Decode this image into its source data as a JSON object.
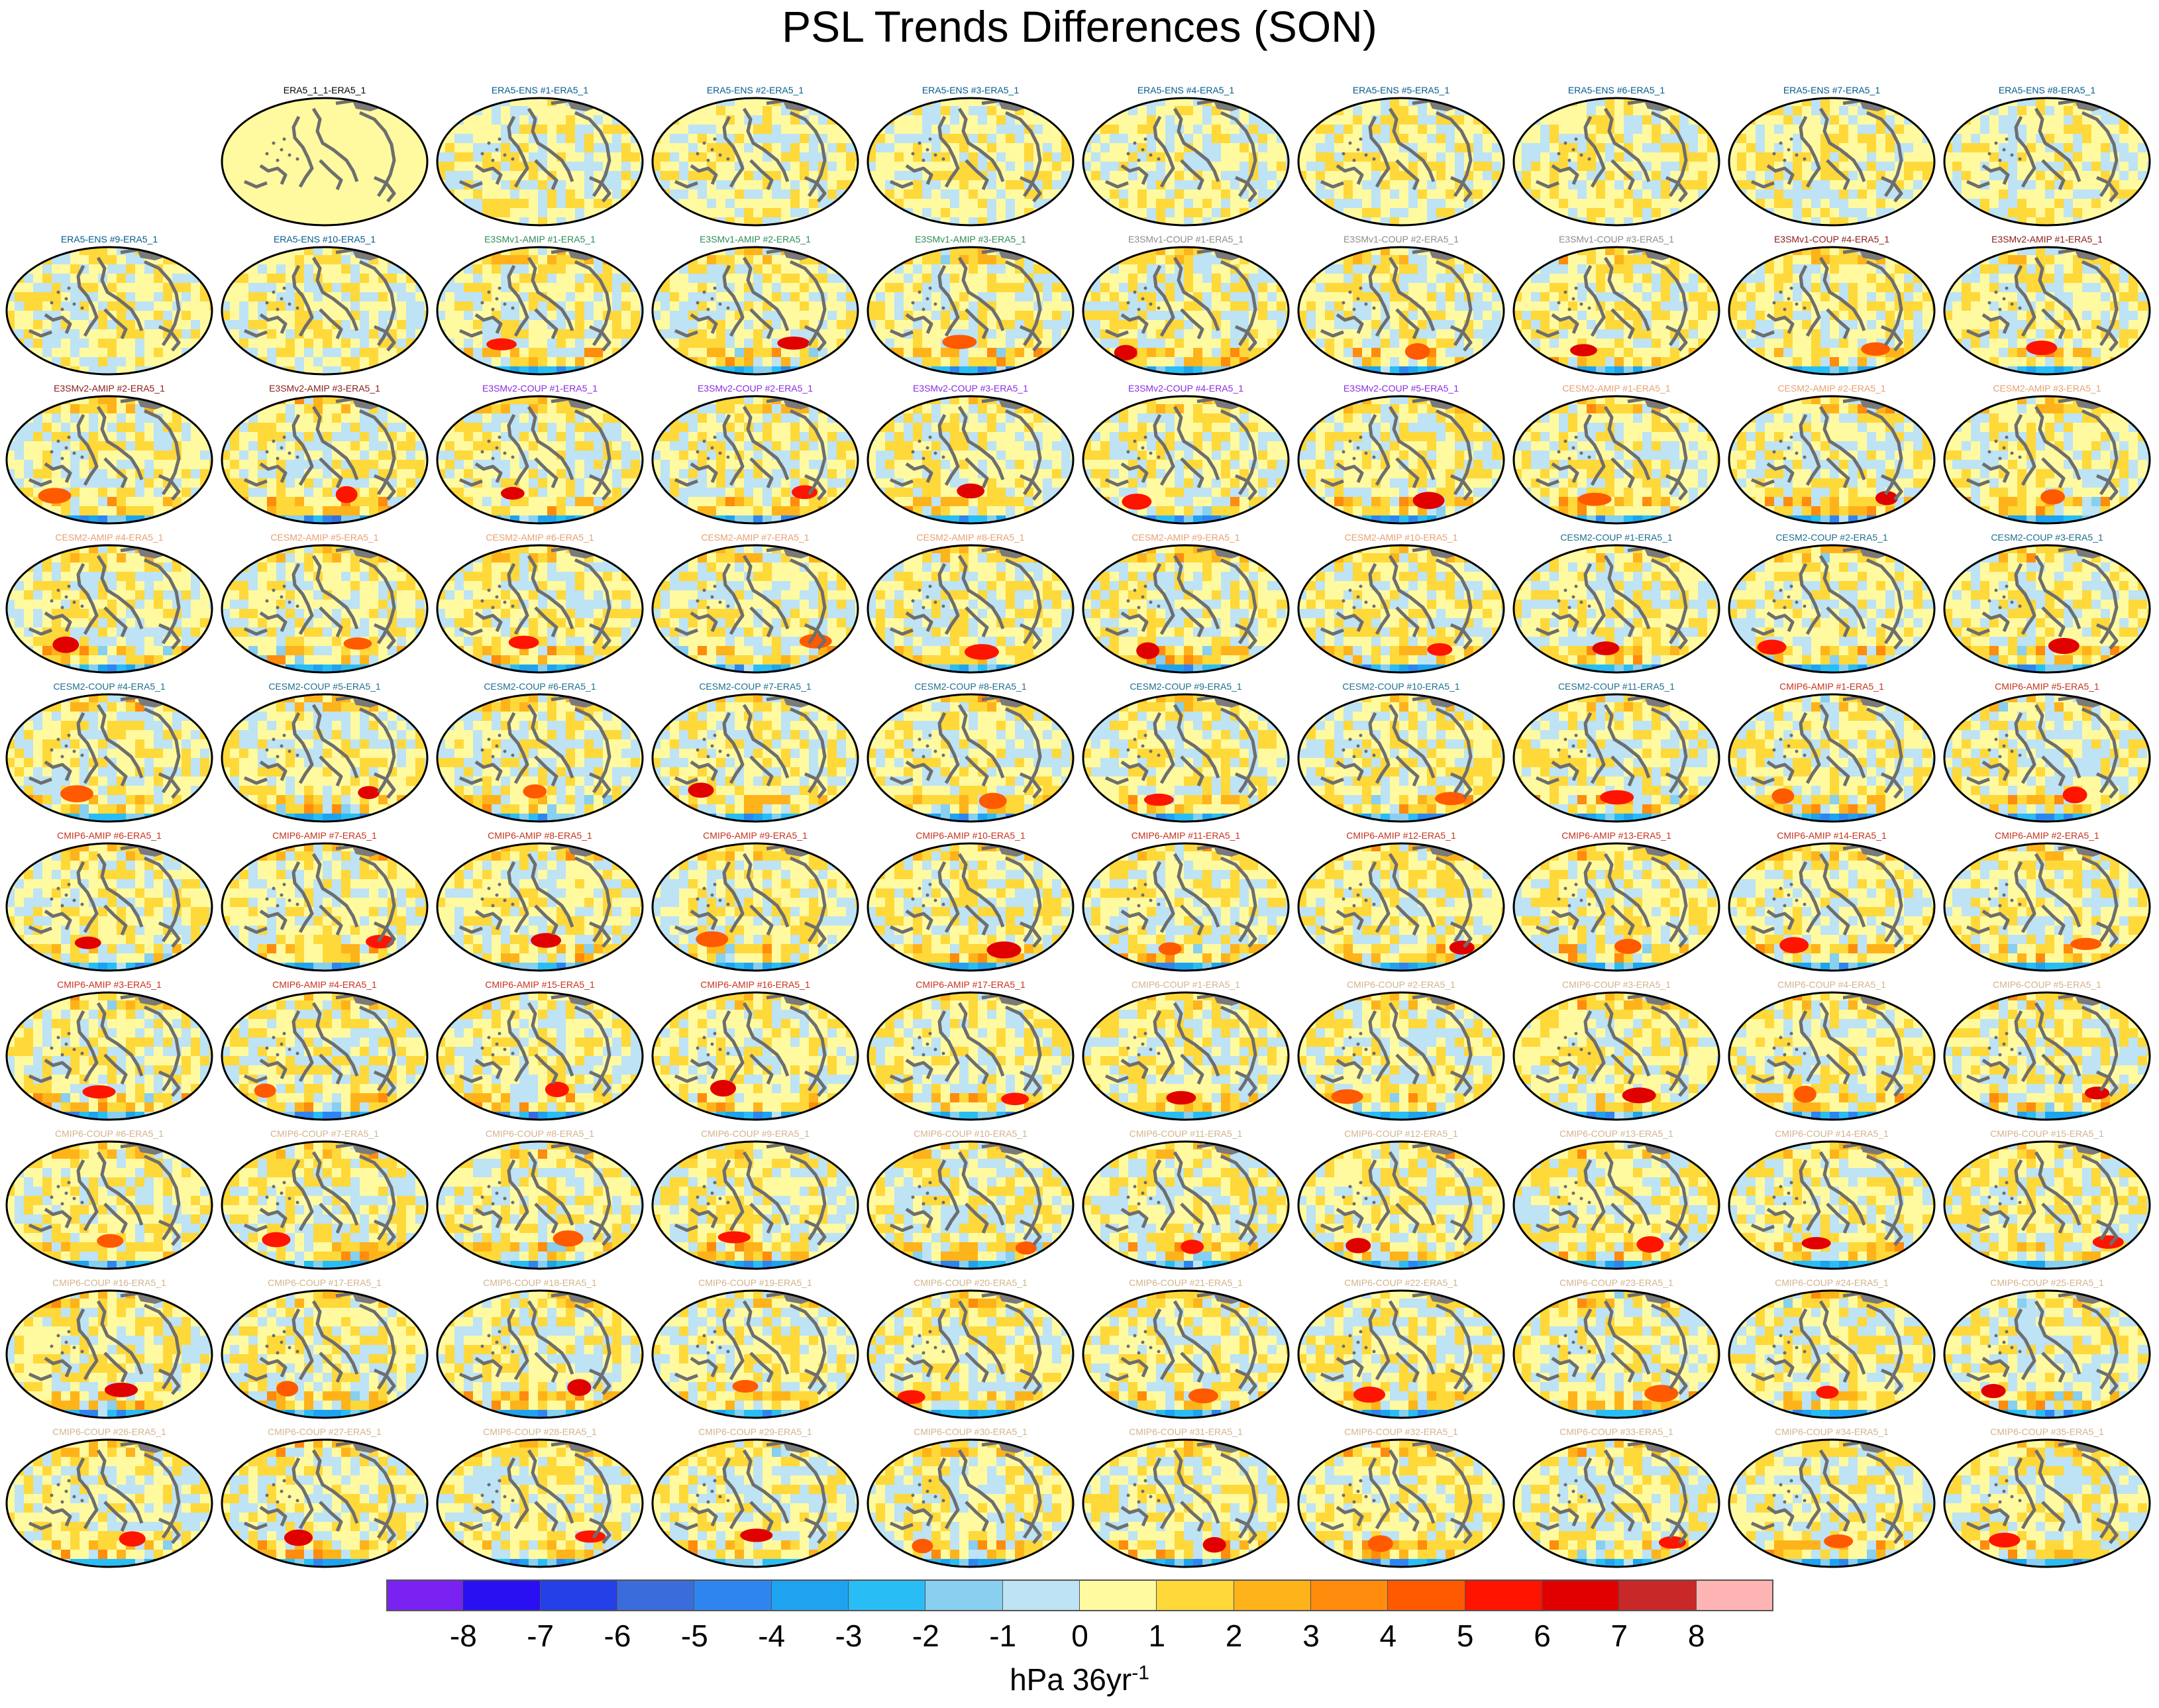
{
  "title": "PSL Trends Differences (SON)",
  "colorbar": {
    "ticks": [
      "-8",
      "-7",
      "-6",
      "-5",
      "-4",
      "-3",
      "-2",
      "-1",
      "0",
      "1",
      "2",
      "3",
      "4",
      "5",
      "6",
      "7",
      "8"
    ],
    "colors": [
      "#7a22f2",
      "#2810f2",
      "#2440e6",
      "#3b6cdc",
      "#2f85f0",
      "#1ea3f0",
      "#29bdf5",
      "#88cff0",
      "#bde3f4",
      "#fffaa0",
      "#ffd83a",
      "#ffb31a",
      "#ff8c0d",
      "#ff5a00",
      "#ff1400",
      "#e00000",
      "#c82828",
      "#ffb4b4"
    ],
    "unit_main": "hPa 36yr",
    "unit_sup": "-1"
  },
  "panels": [
    {
      "label": "ERA5_1_1-ERA5_1",
      "color": "#000000"
    },
    {
      "label": "ERA5-ENS #1-ERA5_1",
      "color": "#005a8c"
    },
    {
      "label": "ERA5-ENS #2-ERA5_1",
      "color": "#005a8c"
    },
    {
      "label": "ERA5-ENS #3-ERA5_1",
      "color": "#005a8c"
    },
    {
      "label": "ERA5-ENS #4-ERA5_1",
      "color": "#005a8c"
    },
    {
      "label": "ERA5-ENS #5-ERA5_1",
      "color": "#005a8c"
    },
    {
      "label": "ERA5-ENS #6-ERA5_1",
      "color": "#005a8c"
    },
    {
      "label": "ERA5-ENS #7-ERA5_1",
      "color": "#005a8c"
    },
    {
      "label": "ERA5-ENS #8-ERA5_1",
      "color": "#005a8c"
    },
    {
      "label": "ERA5-ENS #9-ERA5_1",
      "color": "#005a8c"
    },
    {
      "label": "ERA5-ENS #10-ERA5_1",
      "color": "#005a8c"
    },
    {
      "label": "E3SMv1-AMIP #1-ERA5_1",
      "color": "#2e8b57"
    },
    {
      "label": "E3SMv1-AMIP #2-ERA5_1",
      "color": "#2e8b57"
    },
    {
      "label": "E3SMv1-AMIP #3-ERA5_1",
      "color": "#2e8b57"
    },
    {
      "label": "E3SMv1-COUP #1-ERA5_1",
      "color": "#8c8c8c"
    },
    {
      "label": "E3SMv1-COUP #2-ERA5_1",
      "color": "#8c8c8c"
    },
    {
      "label": "E3SMv1-COUP #3-ERA5_1",
      "color": "#8c8c8c"
    },
    {
      "label": "E3SMv1-COUP #4-ERA5_1",
      "color": "#8b1a1a"
    },
    {
      "label": "E3SMv2-AMIP #1-ERA5_1",
      "color": "#8b1a1a"
    },
    {
      "label": "E3SMv2-AMIP #2-ERA5_1",
      "color": "#8b1a1a"
    },
    {
      "label": "E3SMv2-AMIP #3-ERA5_1",
      "color": "#8b1a1a"
    },
    {
      "label": "E3SMv2-COUP #1-ERA5_1",
      "color": "#8a2be2"
    },
    {
      "label": "E3SMv2-COUP #2-ERA5_1",
      "color": "#8a2be2"
    },
    {
      "label": "E3SMv2-COUP #3-ERA5_1",
      "color": "#8a2be2"
    },
    {
      "label": "E3SMv2-COUP #4-ERA5_1",
      "color": "#8a2be2"
    },
    {
      "label": "E3SMv2-COUP #5-ERA5_1",
      "color": "#8a2be2"
    },
    {
      "label": "CESM2-AMIP #1-ERA5_1",
      "color": "#e8a070"
    },
    {
      "label": "CESM2-AMIP #2-ERA5_1",
      "color": "#e8a070"
    },
    {
      "label": "CESM2-AMIP #3-ERA5_1",
      "color": "#e8a070"
    },
    {
      "label": "CESM2-AMIP #4-ERA5_1",
      "color": "#e8a070"
    },
    {
      "label": "CESM2-AMIP #5-ERA5_1",
      "color": "#e8a070"
    },
    {
      "label": "CESM2-AMIP #6-ERA5_1",
      "color": "#e8a070"
    },
    {
      "label": "CESM2-AMIP #7-ERA5_1",
      "color": "#e8a070"
    },
    {
      "label": "CESM2-AMIP #8-ERA5_1",
      "color": "#e8a070"
    },
    {
      "label": "CESM2-AMIP #9-ERA5_1",
      "color": "#e8a070"
    },
    {
      "label": "CESM2-AMIP #10-ERA5_1",
      "color": "#e8a070"
    },
    {
      "label": "CESM2-COUP #1-ERA5_1",
      "color": "#1e6e8c"
    },
    {
      "label": "CESM2-COUP #2-ERA5_1",
      "color": "#1e6e8c"
    },
    {
      "label": "CESM2-COUP #3-ERA5_1",
      "color": "#1e6e8c"
    },
    {
      "label": "CESM2-COUP #4-ERA5_1",
      "color": "#1e6e8c"
    },
    {
      "label": "CESM2-COUP #5-ERA5_1",
      "color": "#1e6e8c"
    },
    {
      "label": "CESM2-COUP #6-ERA5_1",
      "color": "#1e6e8c"
    },
    {
      "label": "CESM2-COUP #7-ERA5_1",
      "color": "#1e6e8c"
    },
    {
      "label": "CESM2-COUP #8-ERA5_1",
      "color": "#1e6e8c"
    },
    {
      "label": "CESM2-COUP #9-ERA5_1",
      "color": "#1e6e8c"
    },
    {
      "label": "CESM2-COUP #10-ERA5_1",
      "color": "#1e6e8c"
    },
    {
      "label": "CESM2-COUP #11-ERA5_1",
      "color": "#1e6e8c"
    },
    {
      "label": "CMIP6-AMIP #1-ERA5_1",
      "color": "#c8321e"
    },
    {
      "label": "CMIP6-AMIP #5-ERA5_1",
      "color": "#c8321e"
    },
    {
      "label": "CMIP6-AMIP #6-ERA5_1",
      "color": "#c8321e"
    },
    {
      "label": "CMIP6-AMIP #7-ERA5_1",
      "color": "#c8321e"
    },
    {
      "label": "CMIP6-AMIP #8-ERA5_1",
      "color": "#c8321e"
    },
    {
      "label": "CMIP6-AMIP #9-ERA5_1",
      "color": "#c8321e"
    },
    {
      "label": "CMIP6-AMIP #10-ERA5_1",
      "color": "#c8321e"
    },
    {
      "label": "CMIP6-AMIP #11-ERA5_1",
      "color": "#c8321e"
    },
    {
      "label": "CMIP6-AMIP #12-ERA5_1",
      "color": "#c8321e"
    },
    {
      "label": "CMIP6-AMIP #13-ERA5_1",
      "color": "#c8321e"
    },
    {
      "label": "CMIP6-AMIP #14-ERA5_1",
      "color": "#c8321e"
    },
    {
      "label": "CMIP6-AMIP #2-ERA5_1",
      "color": "#c8321e"
    },
    {
      "label": "CMIP6-AMIP #3-ERA5_1",
      "color": "#c8321e"
    },
    {
      "label": "CMIP6-AMIP #4-ERA5_1",
      "color": "#c8321e"
    },
    {
      "label": "CMIP6-AMIP #15-ERA5_1",
      "color": "#c8321e"
    },
    {
      "label": "CMIP6-AMIP #16-ERA5_1",
      "color": "#c8321e"
    },
    {
      "label": "CMIP6-AMIP #17-ERA5_1",
      "color": "#c8321e"
    },
    {
      "label": "CMIP6-COUP #1-ERA5_1",
      "color": "#d2b48c"
    },
    {
      "label": "CMIP6-COUP #2-ERA5_1",
      "color": "#d2b48c"
    },
    {
      "label": "CMIP6-COUP #3-ERA5_1",
      "color": "#d2b48c"
    },
    {
      "label": "CMIP6-COUP #4-ERA5_1",
      "color": "#d2b48c"
    },
    {
      "label": "CMIP6-COUP #5-ERA5_1",
      "color": "#d2b48c"
    },
    {
      "label": "CMIP6-COUP #6-ERA5_1",
      "color": "#d2b48c"
    },
    {
      "label": "CMIP6-COUP #7-ERA5_1",
      "color": "#d2b48c"
    },
    {
      "label": "CMIP6-COUP #8-ERA5_1",
      "color": "#d2b48c"
    },
    {
      "label": "CMIP6-COUP #9-ERA5_1",
      "color": "#d2b48c"
    },
    {
      "label": "CMIP6-COUP #10-ERA5_1",
      "color": "#d2b48c"
    },
    {
      "label": "CMIP6-COUP #11-ERA5_1",
      "color": "#d2b48c"
    },
    {
      "label": "CMIP6-COUP #12-ERA5_1",
      "color": "#d2b48c"
    },
    {
      "label": "CMIP6-COUP #13-ERA5_1",
      "color": "#d2b48c"
    },
    {
      "label": "CMIP6-COUP #14-ERA5_1",
      "color": "#d2b48c"
    },
    {
      "label": "CMIP6-COUP #15-ERA5_1",
      "color": "#d2b48c"
    },
    {
      "label": "CMIP6-COUP #16-ERA5_1",
      "color": "#d2b48c"
    },
    {
      "label": "CMIP6-COUP #17-ERA5_1",
      "color": "#d2b48c"
    },
    {
      "label": "CMIP6-COUP #18-ERA5_1",
      "color": "#d2b48c"
    },
    {
      "label": "CMIP6-COUP #19-ERA5_1",
      "color": "#d2b48c"
    },
    {
      "label": "CMIP6-COUP #20-ERA5_1",
      "color": "#d2b48c"
    },
    {
      "label": "CMIP6-COUP #21-ERA5_1",
      "color": "#d2b48c"
    },
    {
      "label": "CMIP6-COUP #22-ERA5_1",
      "color": "#d2b48c"
    },
    {
      "label": "CMIP6-COUP #23-ERA5_1",
      "color": "#d2b48c"
    },
    {
      "label": "CMIP6-COUP #24-ERA5_1",
      "color": "#d2b48c"
    },
    {
      "label": "CMIP6-COUP #25-ERA5_1",
      "color": "#d2b48c"
    },
    {
      "label": "CMIP6-COUP #26-ERA5_1",
      "color": "#d2b48c"
    },
    {
      "label": "CMIP6-COUP #27-ERA5_1",
      "color": "#d2b48c"
    },
    {
      "label": "CMIP6-COUP #28-ERA5_1",
      "color": "#d2b48c"
    },
    {
      "label": "CMIP6-COUP #29-ERA5_1",
      "color": "#d2b48c"
    },
    {
      "label": "CMIP6-COUP #30-ERA5_1",
      "color": "#d2b48c"
    },
    {
      "label": "CMIP6-COUP #31-ERA5_1",
      "color": "#d2b48c"
    },
    {
      "label": "CMIP6-COUP #32-ERA5_1",
      "color": "#d2b48c"
    },
    {
      "label": "CMIP6-COUP #33-ERA5_1",
      "color": "#d2b48c"
    },
    {
      "label": "CMIP6-COUP #34-ERA5_1",
      "color": "#d2b48c"
    },
    {
      "label": "CMIP6-COUP #35-ERA5_1",
      "color": "#d2b48c"
    }
  ]
}
